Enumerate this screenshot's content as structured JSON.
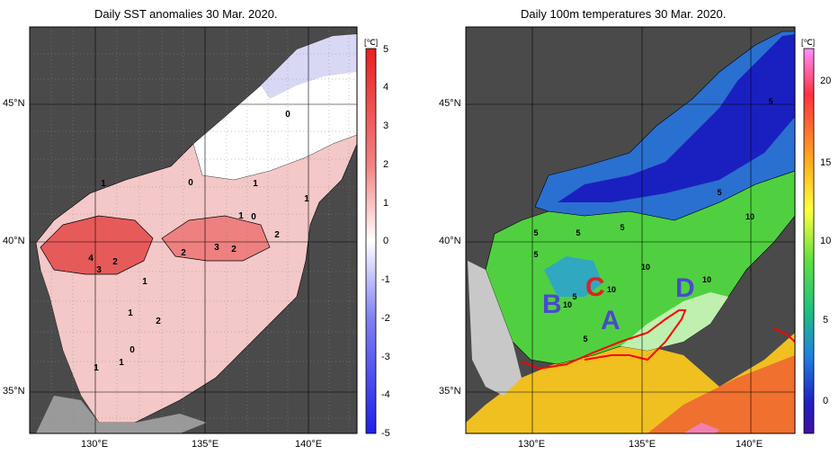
{
  "left_panel": {
    "title": "Daily SST anomalies 30 Mar. 2020.",
    "unit": "[℃]",
    "colorbar_ticks": [
      "5",
      "4",
      "3",
      "2",
      "1",
      "0",
      "-1",
      "-2",
      "-3",
      "-4",
      "-5"
    ],
    "contour_labels": [
      "0",
      "1",
      "0",
      "1",
      "1",
      "1",
      "0",
      "2",
      "2",
      "3",
      "2",
      "4",
      "3",
      "2",
      "1",
      "2",
      "0",
      "1",
      "1",
      "1"
    ]
  },
  "right_panel": {
    "title": "Daily 100m temperatures 30 Mar. 2020.",
    "unit": "[℃]",
    "colorbar_ticks": [
      "20",
      "15",
      "10",
      "5",
      "0"
    ],
    "contour_labels": [
      "5",
      "5",
      "5",
      "5",
      "10",
      "5",
      "10",
      "10",
      "10",
      "10",
      "5",
      "5",
      "5"
    ],
    "region_labels": [
      "A",
      "B",
      "C",
      "D"
    ],
    "region_colors": {
      "A": "#4a4acc",
      "B": "#4a4acc",
      "C": "#e02020",
      "D": "#4a4acc"
    }
  },
  "axes": {
    "lat_labels": [
      "45°N",
      "40°N",
      "35°N"
    ],
    "lon_labels": [
      "130°E",
      "135°E",
      "140°E"
    ]
  },
  "colors": {
    "land": "#4a4a4a",
    "land_light": "#c8c8c8",
    "anom_pos": "#e03030",
    "anom_neg": "#3030e0",
    "grid": "#000000"
  }
}
